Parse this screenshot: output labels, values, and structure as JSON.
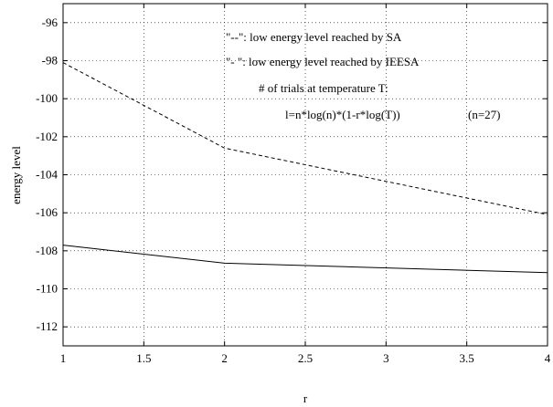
{
  "chart_data": {
    "type": "line",
    "title": "",
    "xlabel": "r",
    "ylabel": "energy level",
    "xlim": [
      1,
      4
    ],
    "ylim": [
      -113,
      -95
    ],
    "x_ticks": [
      1,
      1.5,
      2,
      2.5,
      3,
      3.5,
      4
    ],
    "x_tick_labels": [
      "1",
      "1.5",
      "2",
      "2.5",
      "3",
      "3.5",
      "4"
    ],
    "y_ticks": [
      -96,
      -98,
      -100,
      -102,
      -104,
      -106,
      -108,
      -110,
      -112
    ],
    "y_tick_labels": [
      "-96",
      "-98",
      "-100",
      "-102",
      "-104",
      "-106",
      "-108",
      "-110",
      "-112"
    ],
    "grid": true,
    "series": [
      {
        "style": "dashed",
        "color": "#000000",
        "x": [
          1,
          2,
          4
        ],
        "y": [
          -98.1,
          -102.6,
          -106.1
        ]
      },
      {
        "style": "solid",
        "color": "#000000",
        "x": [
          1,
          2,
          4
        ],
        "y": [
          -107.7,
          -108.65,
          -109.15
        ]
      }
    ],
    "annotations": [
      "\"--\":  low energy level reached by SA",
      "\"- \":  low energy level reached by IEESA",
      "# of trials at temperature T:",
      "l=n*log(n)*(1-r*log(T))",
      "(n=27)"
    ]
  }
}
